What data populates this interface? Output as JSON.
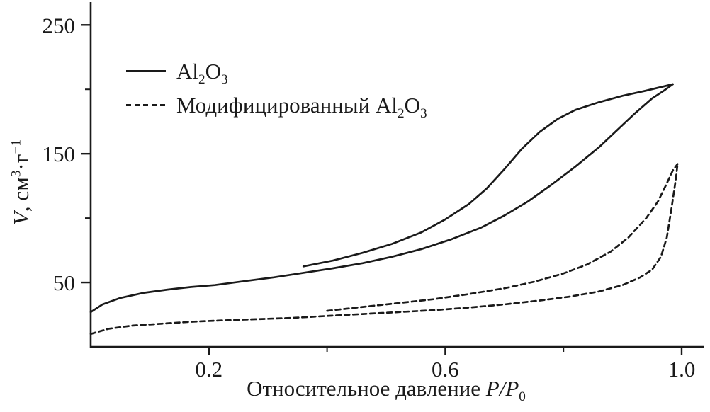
{
  "labels": {
    "y": {
      "math": "V",
      "t1": ", см",
      "sup1": "3",
      "t2": "·г",
      "sup2": "−1"
    },
    "x": {
      "text": "Относительное давление ",
      "math": "P/P",
      "sub": "0"
    },
    "legend": [
      {
        "style": "solid",
        "pre": "Al",
        "s1": "2",
        "mid": "O",
        "s2": "3"
      },
      {
        "style": "dashed",
        "pre": "Модифицированный Al",
        "s1": "2",
        "mid": "O",
        "s2": "3"
      }
    ]
  },
  "chart_data": {
    "type": "line",
    "title": "",
    "xlabel": "Относительное давление P/P0",
    "ylabel": "V, см3·г−1",
    "legend": [
      "Al2O3 (solid)",
      "Модифицированный Al2O3 (dashed)"
    ],
    "legend_position": "top-left",
    "grid": false,
    "color": "#1a1a1a",
    "x_range": [
      0,
      1.0
    ],
    "y_range": [
      0,
      265
    ],
    "x_axis": {
      "major": [
        {
          "v": 0.2,
          "label": "0.2"
        },
        {
          "v": 0.6,
          "label": "0.6"
        },
        {
          "v": 1.0,
          "label": "1.0"
        }
      ],
      "minor": [
        0.4,
        0.8
      ]
    },
    "y_axis": {
      "major": [
        {
          "v": 50,
          "label": "50"
        },
        {
          "v": 150,
          "label": "150"
        },
        {
          "v": 250,
          "label": "250"
        }
      ],
      "minor": [
        100,
        200
      ]
    },
    "series": [
      {
        "id": "al2o3-adsorption",
        "name": "Al2O3 adsorption branch",
        "line": "solid",
        "points": [
          [
            0,
            27
          ],
          [
            0.02,
            33
          ],
          [
            0.05,
            38
          ],
          [
            0.09,
            42
          ],
          [
            0.13,
            44.5
          ],
          [
            0.17,
            46.5
          ],
          [
            0.21,
            48
          ],
          [
            0.26,
            51
          ],
          [
            0.31,
            54
          ],
          [
            0.36,
            57.5
          ],
          [
            0.41,
            61
          ],
          [
            0.46,
            65
          ],
          [
            0.51,
            70
          ],
          [
            0.56,
            76
          ],
          [
            0.61,
            83.5
          ],
          [
            0.66,
            92.5
          ],
          [
            0.7,
            102
          ],
          [
            0.74,
            113
          ],
          [
            0.78,
            126
          ],
          [
            0.82,
            140
          ],
          [
            0.86,
            155
          ],
          [
            0.89,
            168
          ],
          [
            0.92,
            181
          ],
          [
            0.95,
            193
          ],
          [
            0.97,
            199
          ],
          [
            0.985,
            204
          ]
        ]
      },
      {
        "id": "al2o3-desorption",
        "name": "Al2O3 desorption branch",
        "line": "solid",
        "points": [
          [
            0.36,
            62.5
          ],
          [
            0.41,
            67
          ],
          [
            0.46,
            73
          ],
          [
            0.51,
            80
          ],
          [
            0.56,
            89
          ],
          [
            0.6,
            99
          ],
          [
            0.64,
            111
          ],
          [
            0.67,
            123
          ],
          [
            0.7,
            138
          ],
          [
            0.73,
            154
          ],
          [
            0.76,
            167
          ],
          [
            0.79,
            177
          ],
          [
            0.82,
            184
          ],
          [
            0.86,
            190
          ],
          [
            0.9,
            195
          ],
          [
            0.94,
            199
          ],
          [
            0.985,
            204
          ]
        ]
      },
      {
        "id": "mod-al2o3-adsorption",
        "name": "Modified Al2O3 adsorption branch",
        "line": "dashed",
        "points": [
          [
            0,
            10
          ],
          [
            0.03,
            14
          ],
          [
            0.07,
            16.5
          ],
          [
            0.12,
            18
          ],
          [
            0.17,
            19.5
          ],
          [
            0.22,
            20.5
          ],
          [
            0.28,
            21.5
          ],
          [
            0.34,
            22.5
          ],
          [
            0.4,
            24
          ],
          [
            0.46,
            25.5
          ],
          [
            0.52,
            27
          ],
          [
            0.58,
            28.5
          ],
          [
            0.64,
            30.5
          ],
          [
            0.7,
            33
          ],
          [
            0.76,
            36
          ],
          [
            0.81,
            39
          ],
          [
            0.86,
            43
          ],
          [
            0.9,
            48
          ],
          [
            0.93,
            54
          ],
          [
            0.95,
            60
          ],
          [
            0.965,
            70
          ],
          [
            0.975,
            85
          ],
          [
            0.983,
            108
          ],
          [
            0.99,
            130
          ],
          [
            0.993,
            142
          ]
        ]
      },
      {
        "id": "mod-al2o3-desorption",
        "name": "Modified Al2O3 desorption branch",
        "line": "dashed",
        "points": [
          [
            0.4,
            28
          ],
          [
            0.46,
            31
          ],
          [
            0.52,
            34
          ],
          [
            0.58,
            37
          ],
          [
            0.64,
            41
          ],
          [
            0.7,
            45.5
          ],
          [
            0.75,
            50.5
          ],
          [
            0.8,
            57
          ],
          [
            0.84,
            64
          ],
          [
            0.88,
            74
          ],
          [
            0.91,
            85
          ],
          [
            0.94,
            100
          ],
          [
            0.96,
            113
          ],
          [
            0.975,
            127
          ],
          [
            0.985,
            137
          ],
          [
            0.993,
            142
          ]
        ]
      }
    ]
  }
}
